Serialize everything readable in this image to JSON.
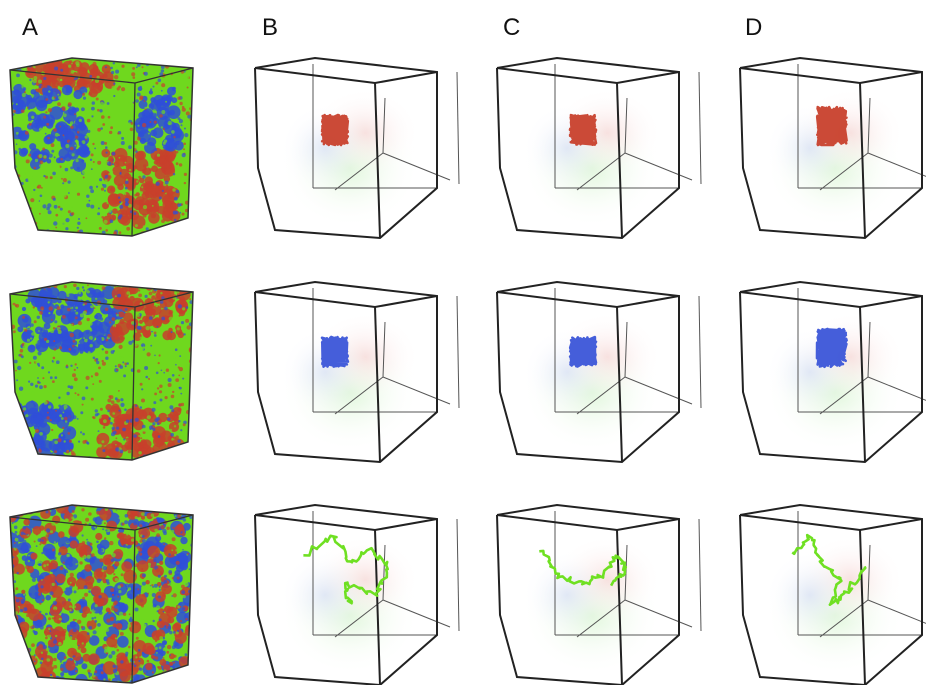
{
  "columns": [
    {
      "label": "A"
    },
    {
      "label": "B"
    },
    {
      "label": "C"
    },
    {
      "label": "D"
    }
  ],
  "rows": [
    {
      "polymer_color": "#c8402c"
    },
    {
      "polymer_color": "#3b55d8"
    },
    {
      "polymer_color": "#6fe022"
    }
  ],
  "volume_colors": [
    "#2f4fd8",
    "#6fd81e",
    "#c8402c"
  ]
}
